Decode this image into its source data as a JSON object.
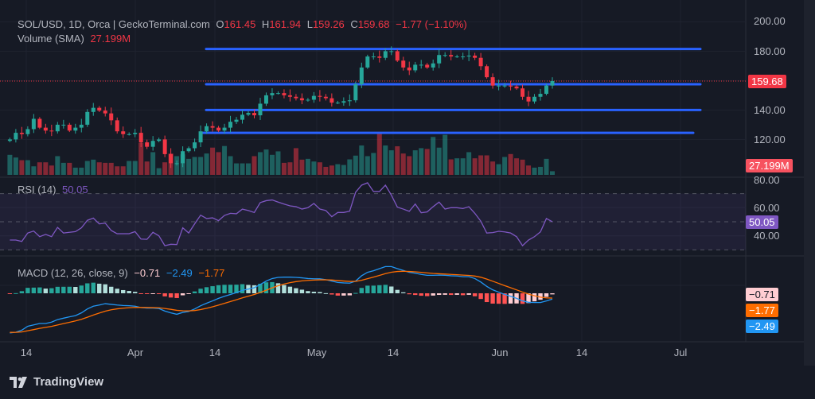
{
  "header": {
    "symbol": "SOL/USD, 1D, Orca | GeckoTerminal.com",
    "o_label": "O",
    "o_value": "161.45",
    "h_label": "H",
    "h_value": "161.94",
    "l_label": "L",
    "l_value": "159.26",
    "c_label": "C",
    "c_value": "159.68",
    "change": "−1.77 (−1.10%)",
    "volume_label": "Volume (SMA)",
    "volume_value": "27.199M"
  },
  "price_axis": [
    "200.00",
    "180.00",
    "140.00",
    "120.00"
  ],
  "last_price_tag": "159.68",
  "volume_tag": "27.199M",
  "rsi": {
    "label": "RSI (14)",
    "value": "50.05",
    "axis": [
      "80.00",
      "60.00",
      "40.00"
    ],
    "tag": "50.05"
  },
  "macd": {
    "label": "MACD (12, 26, close, 9)",
    "hist_value": "−0.71",
    "macd_value": "−2.49",
    "signal_value": "−1.77",
    "tags": {
      "hist": "−0.71",
      "signal": "−1.77",
      "macd": "−2.49"
    }
  },
  "time_axis": [
    "14",
    "Apr",
    "14",
    "May",
    "14",
    "Jun",
    "14",
    "Jul"
  ],
  "footer": {
    "brand": "TradingView"
  },
  "colors": {
    "up": "#26a69a",
    "down": "#f23645",
    "hline": "#2962ff",
    "rsi": "#7e57c2",
    "macd": "#2196f3",
    "signal": "#ff6d00"
  },
  "chart_data": {
    "type": "candlestick",
    "title": "SOL/USD, 1D, Orca",
    "ylim": [
      105,
      205
    ],
    "close": [
      120,
      124.5,
      123.6,
      127,
      134,
      128,
      126,
      125.5,
      130,
      130,
      126,
      128,
      130,
      138.7,
      141.5,
      139.6,
      137.7,
      133,
      125.5,
      123.6,
      123.6,
      124.5,
      118,
      115,
      119,
      120,
      110,
      103.8,
      103.8,
      112,
      114,
      118,
      125.5,
      129,
      128,
      126,
      128,
      132,
      133.4,
      136.8,
      138,
      136.4,
      144.3,
      150,
      151.5,
      151.5,
      150,
      149,
      148,
      146.6,
      147,
      149.6,
      149,
      148,
      145,
      145,
      146,
      146.6,
      157.5,
      168.9,
      176.4,
      176.4,
      175.5,
      180,
      180,
      173.6,
      168.9,
      167,
      170.8,
      170.8,
      168.9,
      171.7,
      177.4,
      177.4,
      176.4,
      176.4,
      176.4,
      177,
      175.5,
      169.8,
      162.3,
      156.6,
      156.6,
      156.6,
      156,
      154.7,
      149,
      145.8,
      149,
      151,
      156.6,
      159.68
    ],
    "volume_m": [
      150,
      130,
      110,
      110,
      64,
      94,
      94,
      70,
      140,
      90,
      90,
      54,
      54,
      104,
      114,
      94,
      90,
      90,
      64,
      64,
      104,
      104,
      240,
      100,
      170,
      50,
      94,
      160,
      140,
      154,
      120,
      134,
      134,
      160,
      204,
      170,
      216,
      140,
      86,
      86,
      86,
      140,
      170,
      190,
      150,
      176,
      90,
      94,
      200,
      114,
      120,
      100,
      94,
      60,
      70,
      80,
      74,
      116,
      144,
      220,
      140,
      164,
      310,
      220,
      184,
      214,
      160,
      140,
      184,
      200,
      194,
      284,
      204,
      300,
      116,
      124,
      124,
      170,
      124,
      146,
      146,
      100,
      80,
      134,
      156,
      124,
      114,
      70,
      54,
      60,
      120,
      27.2
    ],
    "rsi": [
      37,
      37,
      36,
      42,
      43.4,
      39.4,
      41,
      39.4,
      46,
      42,
      42.5,
      43,
      45.7,
      51,
      52.6,
      48.5,
      49,
      43.8,
      41.5,
      41.5,
      41.5,
      43,
      37.7,
      37.5,
      42.5,
      40,
      33,
      34,
      33.8,
      45.7,
      42,
      48.5,
      54.7,
      52.3,
      52.8,
      50.8,
      54.5,
      56,
      55.7,
      59,
      58,
      56.6,
      63.6,
      65,
      65.5,
      64,
      62.6,
      61.3,
      60.7,
      59,
      60,
      63,
      59,
      58,
      53.6,
      56.6,
      56.6,
      57.5,
      71,
      76,
      77.7,
      71.5,
      71.5,
      76,
      68.9,
      60.4,
      59,
      57.4,
      62.6,
      56.4,
      57,
      60.7,
      64,
      59,
      60,
      60,
      59.4,
      60.7,
      56,
      50.4,
      42,
      42.3,
      43.2,
      42.8,
      42,
      39.4,
      33,
      37,
      39.4,
      42.8,
      52.3,
      50.05
    ],
    "macd": [
      -17.2,
      -16.9,
      -16,
      -14.3,
      -13.7,
      -13.1,
      -13.1,
      -12.5,
      -11.4,
      -10.8,
      -10.2,
      -9.7,
      -8.5,
      -6.8,
      -5.6,
      -5.1,
      -4.5,
      -4.8,
      -5.1,
      -5.3,
      -5.4,
      -5.6,
      -6.2,
      -6.4,
      -6.4,
      -6.6,
      -7.7,
      -8.5,
      -9.1,
      -8.3,
      -7.9,
      -6.8,
      -5.4,
      -4.3,
      -3.3,
      -2.2,
      -1.3,
      -0.5,
      0.3,
      1.3,
      1.8,
      2.4,
      3.8,
      5.3,
      6.4,
      6.9,
      7,
      7,
      6.9,
      6.7,
      6.4,
      6.3,
      6.3,
      5.9,
      5.3,
      4.7,
      4.5,
      4.4,
      5.3,
      7.6,
      9.1,
      9.8,
      10.7,
      11.6,
      11.6,
      10.7,
      9.9,
      9.1,
      8.7,
      8.2,
      7.8,
      7.8,
      7.9,
      7.8,
      7.6,
      7.5,
      7.2,
      7.2,
      6.4,
      4.9,
      3,
      1.5,
      0.5,
      -0.5,
      -1.3,
      -2.2,
      -3.3,
      -3.9,
      -4,
      -4,
      -3.3,
      -2.49
    ],
    "horizontal_lines": [
      181.5,
      157.5,
      140,
      124.5
    ]
  }
}
